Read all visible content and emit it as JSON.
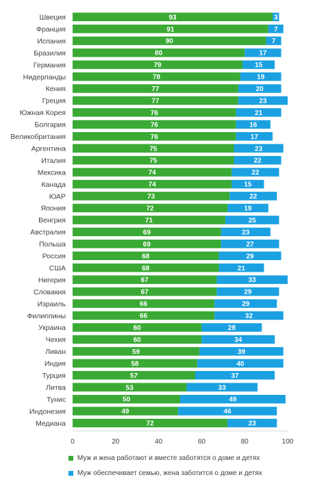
{
  "chart_data": {
    "type": "bar",
    "orientation": "horizontal",
    "stacked": true,
    "title": "",
    "xlabel": "",
    "ylabel": "",
    "xlim": [
      0,
      100
    ],
    "xticks": [
      0,
      20,
      40,
      60,
      80,
      100
    ],
    "grid": false,
    "legend_position": "bottom",
    "categories": [
      "Швеция",
      "Франция",
      "Испания",
      "Бразилия",
      "Германия",
      "Нидерланды",
      "Кения",
      "Греция",
      "Южная Корея",
      "Болгария",
      "Великобритания",
      "Аргентина",
      "Италия",
      "Мексика",
      "Канада",
      "ЮАР",
      "Япония",
      "Венгрия",
      "Австралия",
      "Польша",
      "Россия",
      "США",
      "Нигерия",
      "Словакия",
      "Израиль",
      "Филиппины",
      "Украина",
      "Чехия",
      "Ливан",
      "Индия",
      "Турция",
      "Литва",
      "Тунис",
      "Индонезия",
      "Медиана"
    ],
    "series": [
      {
        "name": "Муж и жена работают и вместе заботятся о доме и детях",
        "color": "#3aaa35",
        "values": [
          93,
          91,
          90,
          80,
          79,
          78,
          77,
          77,
          76,
          76,
          76,
          75,
          75,
          74,
          74,
          73,
          72,
          71,
          69,
          69,
          68,
          68,
          67,
          67,
          66,
          66,
          60,
          60,
          59,
          58,
          57,
          53,
          50,
          49,
          72
        ]
      },
      {
        "name": "Муж обеспечивает семью, жена заботится о доме и детях",
        "color": "#1ba1e2",
        "values": [
          3,
          7,
          7,
          17,
          15,
          19,
          20,
          23,
          21,
          16,
          17,
          23,
          22,
          22,
          15,
          22,
          19,
          25,
          23,
          27,
          29,
          21,
          33,
          29,
          29,
          32,
          28,
          34,
          39,
          40,
          37,
          33,
          49,
          46,
          23
        ]
      }
    ]
  }
}
